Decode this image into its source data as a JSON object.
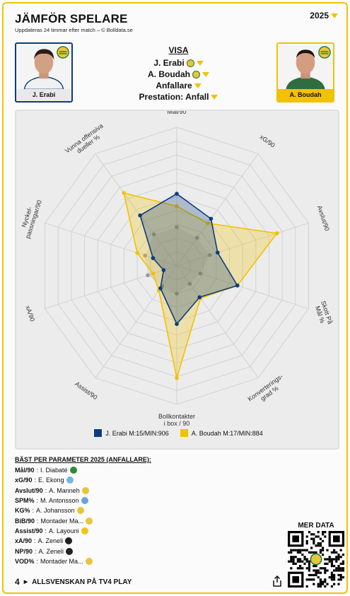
{
  "header": {
    "title": "JÄMFÖR SPELARE",
    "subtitle": "Uppdateras 24 timmar efter match – © Bolldata.se",
    "year": "2025"
  },
  "players": {
    "left": {
      "name": "J. Erabi",
      "color": "#0b3d7e"
    },
    "right": {
      "name": "A. Boudah",
      "color": "#f2c200"
    }
  },
  "visa": {
    "heading": "VISA",
    "player1": "J. Erabi",
    "player2": "A. Boudah",
    "position": "Anfallare",
    "mode": "Prestation: Anfall"
  },
  "chart_data": {
    "type": "radar",
    "axes": [
      "Mål/90",
      "xG/90",
      "Avslut/90",
      "Skott På Mål %",
      "Konverterings-grad %",
      "Bollkontakter i box / 90",
      "Assist/90",
      "xA/90",
      "Nyckel-passningar/90",
      "Vunna offensiva dueller %"
    ],
    "axis_label_lines": [
      [
        "Mål/90"
      ],
      [
        "xG/90"
      ],
      [
        "Avslut/90"
      ],
      [
        "Skott På",
        "Mål %"
      ],
      [
        "Konverterings-",
        "grad %"
      ],
      [
        "Bollkontakter",
        "i box / 90"
      ],
      [
        "Assist/90"
      ],
      [
        "xA/90"
      ],
      [
        "Nyckel-",
        "passningar/90"
      ],
      [
        "Vunna offensiva",
        "dueller %"
      ]
    ],
    "rmax": 100,
    "rings": 10,
    "series": [
      {
        "name": "J. Erabi M:15/MIN:906",
        "color": "#0b3d7e",
        "values": [
          52,
          42,
          31,
          46,
          28,
          42,
          20,
          10,
          18,
          45
        ]
      },
      {
        "name": "A. Boudah M:17/MIN:884",
        "color": "#f2c200",
        "values": [
          43,
          38,
          76,
          46,
          29,
          81,
          22,
          18,
          30,
          65
        ]
      },
      {
        "name": "",
        "color": "#9a9a9a",
        "values": [
          28,
          25,
          25,
          18,
          16,
          20,
          18,
          22,
          24,
          28
        ]
      }
    ]
  },
  "best": {
    "heading": "BÄST PER PARAMETER 2025 (ANFALLARE):",
    "rows": [
      {
        "metric": "Mål/90",
        "player": "I. Diabaté",
        "club": "#2f8a3a"
      },
      {
        "metric": "xG/90",
        "player": "E. Ekong",
        "club": "#79b4e6"
      },
      {
        "metric": "Avslut/90",
        "player": "A. Manneh",
        "club": "#e8c53a"
      },
      {
        "metric": "SPM%",
        "player": "M. Antonsson",
        "club": "#6aa3d9"
      },
      {
        "metric": "KG%",
        "player": "A. Johansson",
        "club": "#e8c53a"
      },
      {
        "metric": "BiB/90",
        "player": "Montader Ma...",
        "club": "#e8c53a"
      },
      {
        "metric": "Assist/90",
        "player": "A. Layouni",
        "club": "#f0c419"
      },
      {
        "metric": "xA/90",
        "player": "A. Zeneli",
        "club": "#222222"
      },
      {
        "metric": "NP/90",
        "player": "A. Zeneli",
        "club": "#222222"
      },
      {
        "metric": "VOD%",
        "player": "Montader Ma...",
        "club": "#e8c53a"
      }
    ]
  },
  "merdata": {
    "label": "MER DATA"
  },
  "footer": {
    "logo": "4",
    "text": "ALLSVENSKAN PÅ TV4 PLAY"
  }
}
